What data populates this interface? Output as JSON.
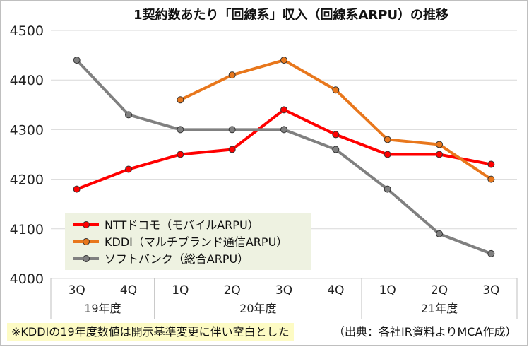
{
  "chart_data": {
    "type": "line",
    "title": "1契約数あたり「回線系」収入（回線系ARPU）の推移",
    "categories": [
      "3Q",
      "4Q",
      "1Q",
      "2Q",
      "3Q",
      "4Q",
      "1Q",
      "2Q",
      "3Q"
    ],
    "year_groups": [
      {
        "label": "19年度",
        "span": 2
      },
      {
        "label": "20年度",
        "span": 4
      },
      {
        "label": "21年度",
        "span": 3
      }
    ],
    "ylim": [
      4000,
      4500
    ],
    "yticks": [
      4000,
      4100,
      4200,
      4300,
      4400,
      4500
    ],
    "grid": true,
    "legend_position": "bottom-left",
    "series": [
      {
        "name": "NTTドコモ（モバイルARPU）",
        "color": "#ff0000",
        "values": [
          4180,
          4220,
          4250,
          4260,
          4340,
          4290,
          4250,
          4250,
          4230
        ]
      },
      {
        "name": "KDDI（マルチブランド通信ARPU）",
        "color": "#e8771c",
        "values": [
          null,
          null,
          4360,
          4410,
          4440,
          4380,
          4280,
          4270,
          4200
        ]
      },
      {
        "name": "ソフトバンク（総合ARPU）",
        "color": "#808080",
        "values": [
          4440,
          4330,
          4300,
          4300,
          4300,
          4260,
          4180,
          4090,
          4050
        ]
      }
    ]
  },
  "note": "※KDDIの19年度数値は開示基準変更に伴い空白とした",
  "source": "（出典：各社IR資料よりMCA作成）"
}
